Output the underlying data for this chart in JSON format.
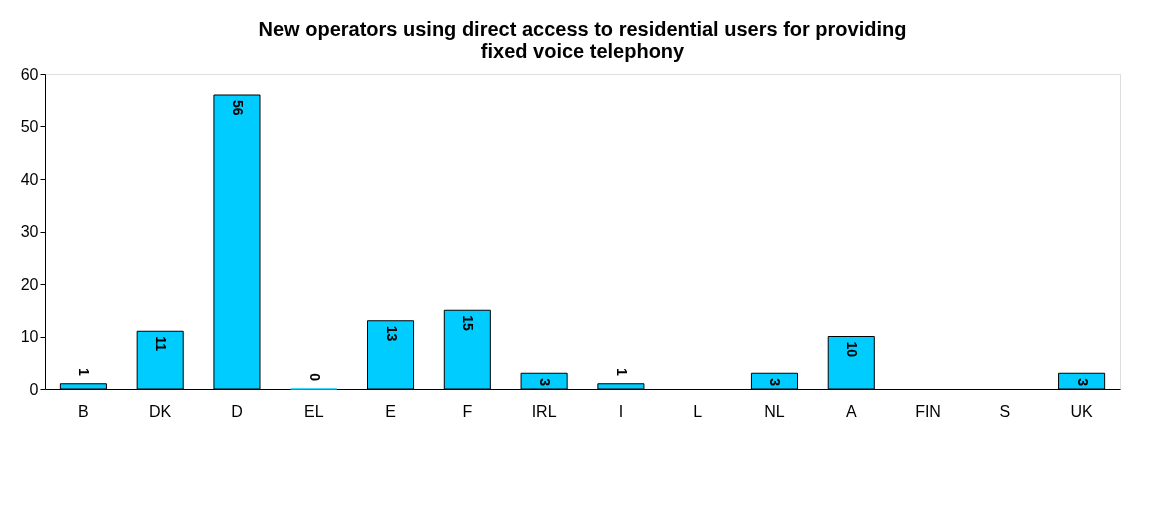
{
  "chart_data": {
    "type": "bar",
    "title": "New operators using direct access to residential users for providing\nfixed voice telephony",
    "categories": [
      "B",
      "DK",
      "D",
      "EL",
      "E",
      "F",
      "IRL",
      "I",
      "L",
      "NL",
      "A",
      "FIN",
      "S",
      "UK"
    ],
    "values": [
      1,
      11,
      56,
      0,
      13,
      15,
      3,
      1,
      null,
      3,
      10,
      null,
      null,
      3
    ],
    "color": "#00ccff",
    "ylim": [
      0,
      60
    ],
    "yticks": [
      0,
      10,
      20,
      30,
      40,
      50,
      60
    ],
    "grid": false,
    "data_labels": true
  }
}
